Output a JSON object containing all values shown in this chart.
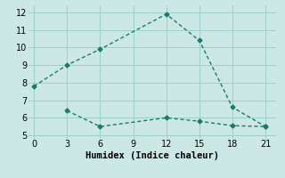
{
  "line1_x": [
    0,
    3,
    6,
    12,
    15,
    18,
    21
  ],
  "line1_y": [
    7.8,
    9.0,
    9.9,
    11.9,
    10.4,
    6.6,
    5.5
  ],
  "line2_x": [
    3,
    6,
    12,
    15,
    18,
    21
  ],
  "line2_y": [
    6.4,
    5.5,
    6.0,
    5.8,
    5.55,
    5.5
  ],
  "color": "#1a7a6e",
  "bg_color": "#cce8e4",
  "xlabel": "Humidex (Indice chaleur)",
  "ylim": [
    4.8,
    12.4
  ],
  "xlim": [
    -0.5,
    22
  ],
  "xticks": [
    0,
    3,
    6,
    9,
    12,
    15,
    18,
    21
  ],
  "yticks": [
    5,
    6,
    7,
    8,
    9,
    10,
    11,
    12
  ],
  "grid_color": "#9ecfca",
  "label_fontsize": 7.5,
  "tick_fontsize": 7
}
